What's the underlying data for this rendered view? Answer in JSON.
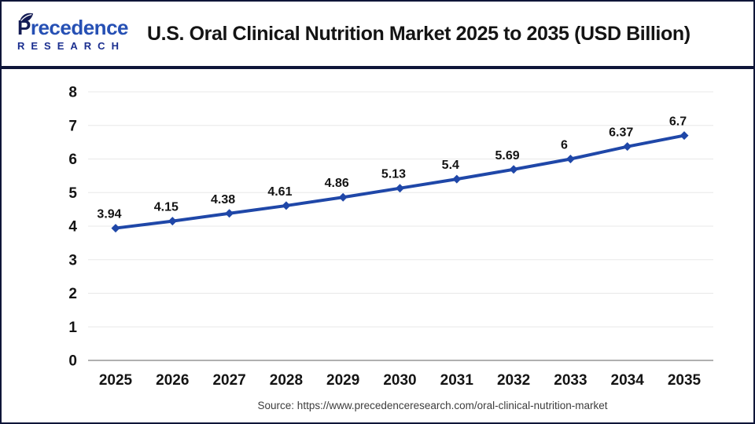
{
  "header": {
    "logo": {
      "brand_initial": "P",
      "brand_rest": "recedence",
      "brand_sub": "RESEARCH"
    }
  },
  "chart_data": {
    "type": "line",
    "title": "U.S. Oral Clinical Nutrition Market 2025 to 2035  (USD Billion)",
    "categories": [
      "2025",
      "2026",
      "2027",
      "2028",
      "2029",
      "2030",
      "2031",
      "2032",
      "2033",
      "2034",
      "2035"
    ],
    "values": [
      3.94,
      4.15,
      4.38,
      4.61,
      4.86,
      5.13,
      5.4,
      5.69,
      6,
      6.37,
      6.7
    ],
    "value_labels": [
      "3.94",
      "4.15",
      "4.38",
      "4.61",
      "4.86",
      "5.13",
      "5.4",
      "5.69",
      "6",
      "6.37",
      "6.7"
    ],
    "xlabel": "",
    "ylabel": "",
    "ylim": [
      0,
      8
    ],
    "yticks": [
      0,
      1,
      2,
      3,
      4,
      5,
      6,
      7,
      8
    ],
    "grid": true,
    "legend": "none",
    "marker": "diamond",
    "line_color": "#1f47a8",
    "marker_color": "#1f47a8",
    "grid_color": "#e8e8e8",
    "axis_color": "#b0b0b0",
    "label_color": "#141414"
  },
  "footer": {
    "source": "Source: https://www.precedenceresearch.com/oral-clinical-nutrition-market"
  },
  "colors": {
    "brand_navy": "#141c55",
    "brand_blue": "#2650b4",
    "frame_navy": "#0e1538",
    "series_blue": "#1f47a8"
  }
}
